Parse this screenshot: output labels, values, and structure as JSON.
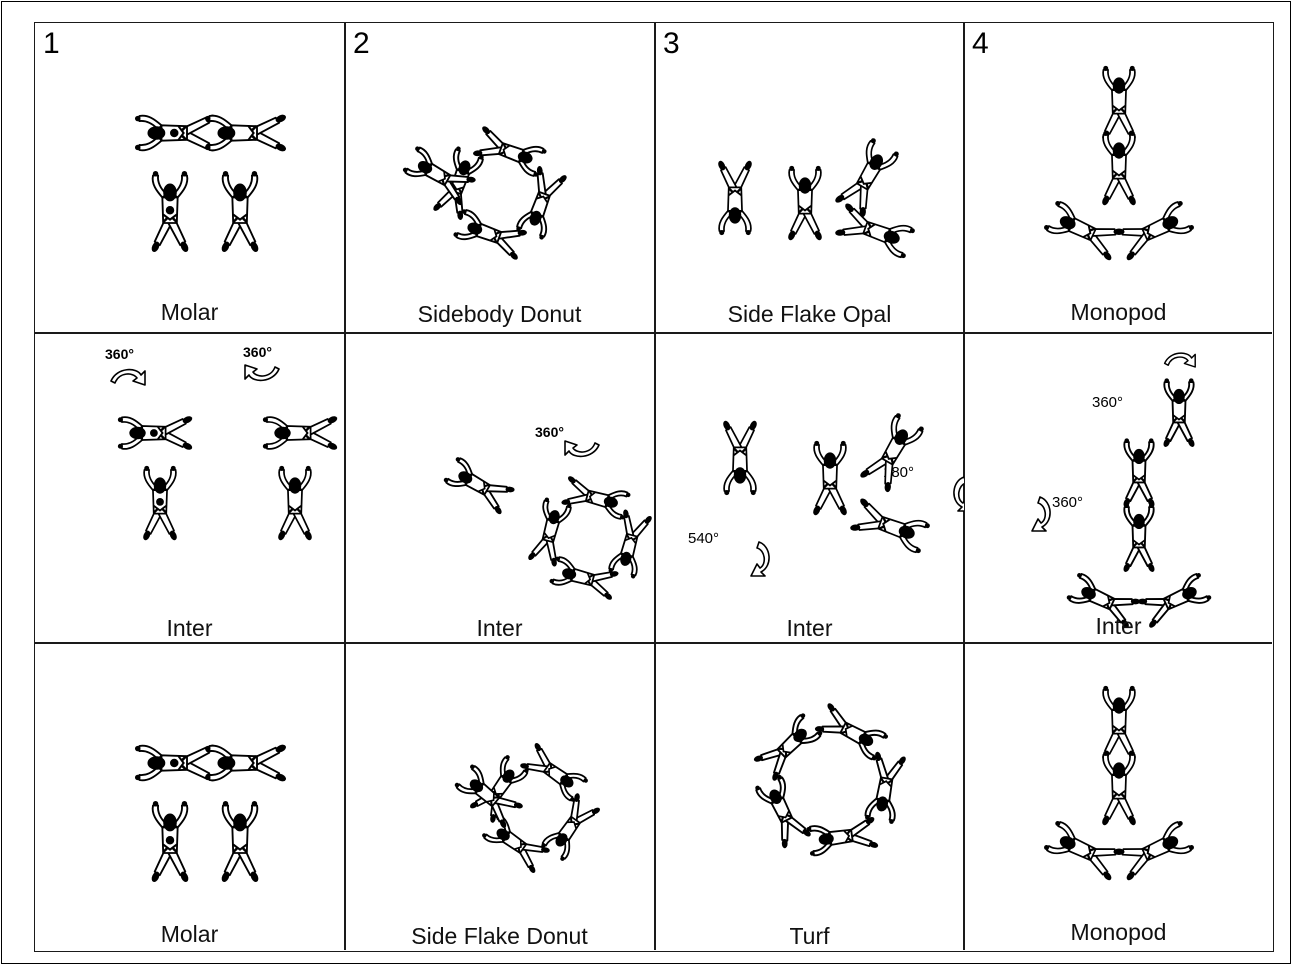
{
  "columns": [
    {
      "number": "1"
    },
    {
      "number": "2"
    },
    {
      "number": "3"
    },
    {
      "number": "4"
    }
  ],
  "rows": [
    {
      "labels": [
        "Molar",
        "Sidebody Donut",
        "Side Flake Opal",
        "Monopod"
      ]
    },
    {
      "labels": [
        "Inter",
        "Inter",
        "Inter",
        "Inter"
      ]
    },
    {
      "labels": [
        "Molar",
        "Side Flake Donut",
        "Turf",
        "Monopod"
      ]
    }
  ],
  "rotations": {
    "col1_left": "360°",
    "col1_right": "360°",
    "col2": "360°",
    "col3_bottom": "540°",
    "col3_right": "180°",
    "col4_top": "360°",
    "col4_left": "360°"
  }
}
